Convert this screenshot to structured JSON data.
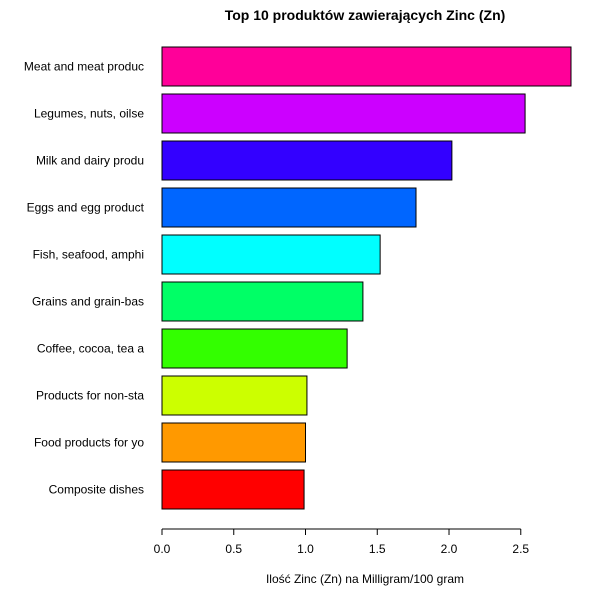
{
  "chart_data": {
    "type": "bar",
    "orientation": "horizontal",
    "title": "Top 10 produktów zawierających Zinc (Zn)",
    "xlabel": "Ilość Zinc (Zn) na Milligram/100 gram",
    "ylabel": "",
    "xlim": [
      0,
      2.85
    ],
    "x_ticks": [
      "0.0",
      "0.5",
      "1.0",
      "1.5",
      "2.0",
      "2.5"
    ],
    "grid": false,
    "categories": [
      "Meat and meat produc",
      "Legumes, nuts, oilse",
      "Milk and dairy produ",
      "Eggs and egg product",
      "Fish, seafood, amphi",
      "Grains and grain-bas",
      "Coffee, cocoa, tea a",
      "Products for non-sta",
      "Food products for yo",
      "Composite dishes"
    ],
    "values": [
      2.85,
      2.53,
      2.02,
      1.77,
      1.52,
      1.4,
      1.29,
      1.01,
      1.0,
      0.99
    ],
    "colors": [
      "#FF0099",
      "#CC00FF",
      "#3300FF",
      "#0066FF",
      "#00FFFF",
      "#00FF66",
      "#33FF00",
      "#CCFF00",
      "#FF9900",
      "#FF0000"
    ]
  }
}
